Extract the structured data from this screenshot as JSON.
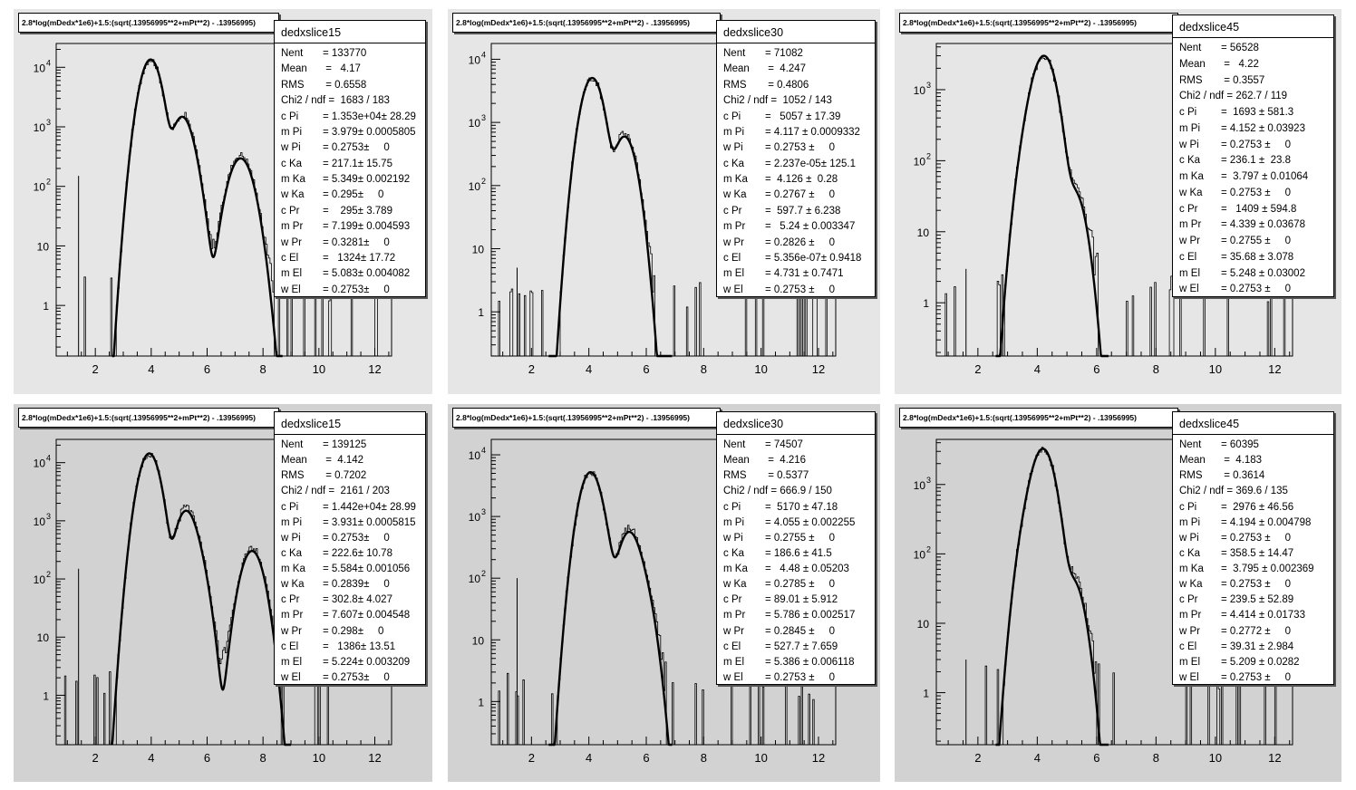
{
  "chart_data": [
    {
      "type": "histogram",
      "title": "2.8*log(mDedx*1e6)+1.5:(sqrt(.13956995**2+mPt**2) - .13956995)",
      "xlim": [
        0.6,
        12.6
      ],
      "ylim_log10": [
        -0.85,
        4.4
      ],
      "xticks": [
        2,
        4,
        6,
        8,
        10,
        12
      ],
      "yticks": [
        {
          "value": 1,
          "label": "1",
          "sup": ""
        },
        {
          "value": 10,
          "label": "10",
          "sup": ""
        },
        {
          "value": 100,
          "label": "10",
          "sup": "2"
        },
        {
          "value": 1000,
          "label": "10",
          "sup": "3"
        },
        {
          "value": 10000,
          "label": "10",
          "sup": "4"
        }
      ],
      "stats": {
        "name": "dedxslice15",
        "rows": [
          {
            "label": "Nent",
            "value": "= 133770"
          },
          {
            "label": "Mean",
            "value": " =   4.17"
          },
          {
            "label": "RMS",
            "value": " = 0.6558"
          },
          {
            "label": "Chi2 / ndf",
            "value": " =  1683 / 183"
          },
          {
            "label": "c Pi",
            "value": "= 1.353e+04± 28.29"
          },
          {
            "label": "m Pi",
            "value": "= 3.979± 0.0005805"
          },
          {
            "label": "w Pi",
            "value": "= 0.2753±     0"
          },
          {
            "label": "c Ka",
            "value": "= 217.1± 15.75"
          },
          {
            "label": "m Ka",
            "value": "= 5.349± 0.002192"
          },
          {
            "label": "w Ka",
            "value": "= 0.295±     0"
          },
          {
            "label": "c Pr",
            "value": "=    295± 3.789"
          },
          {
            "label": "m Pr",
            "value": "= 7.199± 0.004593"
          },
          {
            "label": "w Pr",
            "value": "= 0.3281±     0"
          },
          {
            "label": "c El",
            "value": "=   1324± 17.72"
          },
          {
            "label": "m El",
            "value": "= 5.083± 0.004082"
          },
          {
            "label": "w El",
            "value": "= 0.2753±     0"
          }
        ]
      },
      "fit": {
        "components": [
          {
            "name": "Pi",
            "c": 13530,
            "m": 3.979,
            "w": 0.2753
          },
          {
            "name": "Ka",
            "c": 217.1,
            "m": 5.349,
            "w": 0.295
          },
          {
            "name": "Pr",
            "c": 295,
            "m": 7.199,
            "w": 0.3281
          },
          {
            "name": "El",
            "c": 1324,
            "m": 5.083,
            "w": 0.2753
          }
        ],
        "range": [
          2.6,
          8.7
        ]
      },
      "spikes": [
        {
          "x": 1.4,
          "y": 150
        }
      ]
    },
    {
      "type": "histogram",
      "title": "2.8*log(mDedx*1e6)+1.5:(sqrt(.13956995**2+mPt**2) - .13956995)",
      "xlim": [
        0.6,
        12.6
      ],
      "ylim_log10": [
        -0.7,
        4.25
      ],
      "xticks": [
        2,
        4,
        6,
        8,
        10,
        12
      ],
      "yticks": [
        {
          "value": 1,
          "label": "1",
          "sup": ""
        },
        {
          "value": 10,
          "label": "10",
          "sup": ""
        },
        {
          "value": 100,
          "label": "10",
          "sup": "2"
        },
        {
          "value": 1000,
          "label": "10",
          "sup": "3"
        },
        {
          "value": 10000,
          "label": "10",
          "sup": "4"
        }
      ],
      "stats": {
        "name": "dedxslice30",
        "rows": [
          {
            "label": "Nent",
            "value": "= 71082"
          },
          {
            "label": "Mean",
            "value": " =  4.247"
          },
          {
            "label": "RMS",
            "value": " = 0.4806"
          },
          {
            "label": "Chi2 / ndf",
            "value": " =  1052 / 143"
          },
          {
            "label": "c Pi",
            "value": "=   5057 ± 17.39"
          },
          {
            "label": "m Pi",
            "value": "= 4.117 ± 0.0009332"
          },
          {
            "label": "w Pi",
            "value": "= 0.2753 ±     0"
          },
          {
            "label": "c Ka",
            "value": "= 2.237e-05± 125.1"
          },
          {
            "label": "m Ka",
            "value": "=  4.126 ±  0.28"
          },
          {
            "label": "w Ka",
            "value": "= 0.2767 ±     0"
          },
          {
            "label": "c Pr",
            "value": "=  597.7 ± 6.238"
          },
          {
            "label": "m Pr",
            "value": "=   5.24 ± 0.003347"
          },
          {
            "label": "w Pr",
            "value": "= 0.2826 ±     0"
          },
          {
            "label": "c El",
            "value": "= 5.356e-07± 0.9418"
          },
          {
            "label": "m El",
            "value": "= 4.731 ± 0.7471"
          },
          {
            "label": "w El",
            "value": "= 0.2753 ±     0"
          }
        ]
      },
      "fit": {
        "components": [
          {
            "name": "Pi",
            "c": 5057,
            "m": 4.117,
            "w": 0.2753
          },
          {
            "name": "Pr",
            "c": 597.7,
            "m": 5.24,
            "w": 0.2826
          }
        ],
        "range": [
          2.6,
          6.9
        ]
      },
      "spikes": [
        {
          "x": 1.5,
          "y": 5
        }
      ]
    },
    {
      "type": "histogram",
      "title": "2.8*log(mDedx*1e6)+1.5:(sqrt(.13956995**2+mPt**2) - .13956995)",
      "xlim": [
        0.6,
        12.6
      ],
      "ylim_log10": [
        -0.75,
        3.65
      ],
      "xticks": [
        2,
        4,
        6,
        8,
        10,
        12
      ],
      "yticks": [
        {
          "value": 1,
          "label": "1",
          "sup": ""
        },
        {
          "value": 10,
          "label": "10",
          "sup": ""
        },
        {
          "value": 100,
          "label": "10",
          "sup": "2"
        },
        {
          "value": 1000,
          "label": "10",
          "sup": "3"
        }
      ],
      "stats": {
        "name": "dedxslice45",
        "rows": [
          {
            "label": "Nent",
            "value": "= 56528"
          },
          {
            "label": "Mean",
            "value": " =   4.22"
          },
          {
            "label": "RMS",
            "value": " = 0.3557"
          },
          {
            "label": "Chi2 / ndf",
            "value": " = 262.7 / 119"
          },
          {
            "label": "c Pi",
            "value": "=  1693 ± 581.3"
          },
          {
            "label": "m Pi",
            "value": "= 4.152 ± 0.03923"
          },
          {
            "label": "w Pi",
            "value": "= 0.2753 ±     0"
          },
          {
            "label": "c Ka",
            "value": "= 236.1 ±  23.8"
          },
          {
            "label": "m Ka",
            "value": "=  3.797 ± 0.01064"
          },
          {
            "label": "w Ka",
            "value": "= 0.2753 ±     0"
          },
          {
            "label": "c Pr",
            "value": "=   1409 ± 594.8"
          },
          {
            "label": "m Pr",
            "value": "= 4.339 ± 0.03678"
          },
          {
            "label": "w Pr",
            "value": "= 0.2755 ±     0"
          },
          {
            "label": "c El",
            "value": "= 35.68 ± 3.078"
          },
          {
            "label": "m El",
            "value": "= 5.248 ± 0.03002"
          },
          {
            "label": "w El",
            "value": "= 0.2753 ±     0"
          }
        ]
      },
      "fit": {
        "components": [
          {
            "name": "Pi",
            "c": 1693,
            "m": 4.152,
            "w": 0.2753
          },
          {
            "name": "Ka",
            "c": 236.1,
            "m": 3.797,
            "w": 0.2753
          },
          {
            "name": "Pr",
            "c": 1409,
            "m": 4.339,
            "w": 0.2755
          },
          {
            "name": "El",
            "c": 35.68,
            "m": 5.248,
            "w": 0.2753
          }
        ],
        "range": [
          2.6,
          6.4
        ]
      },
      "spikes": [
        {
          "x": 1.6,
          "y": 3
        }
      ]
    },
    {
      "type": "histogram",
      "title": "2.8*log(mDedx*1e6)+1.5:(sqrt(.13956995**2+mPt**2) - .13956995)",
      "xlim": [
        0.6,
        12.6
      ],
      "ylim_log10": [
        -0.85,
        4.4
      ],
      "xticks": [
        2,
        4,
        6,
        8,
        10,
        12
      ],
      "yticks": [
        {
          "value": 1,
          "label": "1",
          "sup": ""
        },
        {
          "value": 10,
          "label": "10",
          "sup": ""
        },
        {
          "value": 100,
          "label": "10",
          "sup": "2"
        },
        {
          "value": 1000,
          "label": "10",
          "sup": "3"
        },
        {
          "value": 10000,
          "label": "10",
          "sup": "4"
        }
      ],
      "stats": {
        "name": "dedxslice15",
        "rows": [
          {
            "label": "Nent",
            "value": "= 139125"
          },
          {
            "label": "Mean",
            "value": " =  4.142"
          },
          {
            "label": "RMS",
            "value": " = 0.7202"
          },
          {
            "label": "Chi2 / ndf",
            "value": " =  2161 / 203"
          },
          {
            "label": "c Pi",
            "value": "= 1.442e+04± 28.99"
          },
          {
            "label": "m Pi",
            "value": "= 3.931± 0.0005815"
          },
          {
            "label": "w Pi",
            "value": "= 0.2753±     0"
          },
          {
            "label": "c Ka",
            "value": "= 222.6± 10.78"
          },
          {
            "label": "m Ka",
            "value": "= 5.584± 0.001056"
          },
          {
            "label": "w Ka",
            "value": "= 0.2839±     0"
          },
          {
            "label": "c Pr",
            "value": "= 302.8± 4.027"
          },
          {
            "label": "m Pr",
            "value": "= 7.607± 0.004548"
          },
          {
            "label": "w Pr",
            "value": "= 0.298±     0"
          },
          {
            "label": "c El",
            "value": "=   1386± 13.51"
          },
          {
            "label": "m El",
            "value": "= 5.224± 0.003209"
          },
          {
            "label": "w El",
            "value": "= 0.2753±     0"
          }
        ]
      },
      "fit": {
        "components": [
          {
            "name": "Pi",
            "c": 14420,
            "m": 3.931,
            "w": 0.2753
          },
          {
            "name": "Ka",
            "c": 222.6,
            "m": 5.584,
            "w": 0.2839
          },
          {
            "name": "Pr",
            "c": 302.8,
            "m": 7.607,
            "w": 0.298
          },
          {
            "name": "El",
            "c": 1386,
            "m": 5.224,
            "w": 0.2753
          }
        ],
        "range": [
          2.6,
          9.0
        ]
      },
      "spikes": [
        {
          "x": 1.4,
          "y": 150
        }
      ]
    },
    {
      "type": "histogram",
      "title": "2.8*log(mDedx*1e6)+1.5:(sqrt(.13956995**2+mPt**2) - .13956995)",
      "xlim": [
        0.6,
        12.6
      ],
      "ylim_log10": [
        -0.7,
        4.25
      ],
      "xticks": [
        2,
        4,
        6,
        8,
        10,
        12
      ],
      "yticks": [
        {
          "value": 1,
          "label": "1",
          "sup": ""
        },
        {
          "value": 10,
          "label": "10",
          "sup": ""
        },
        {
          "value": 100,
          "label": "10",
          "sup": "2"
        },
        {
          "value": 1000,
          "label": "10",
          "sup": "3"
        },
        {
          "value": 10000,
          "label": "10",
          "sup": "4"
        }
      ],
      "stats": {
        "name": "dedxslice30",
        "rows": [
          {
            "label": "Nent",
            "value": "= 74507"
          },
          {
            "label": "Mean",
            "value": " =  4.216"
          },
          {
            "label": "RMS",
            "value": " = 0.5377"
          },
          {
            "label": "Chi2 / ndf",
            "value": " = 666.9 / 150"
          },
          {
            "label": "c Pi",
            "value": "=  5170 ± 47.18"
          },
          {
            "label": "m Pi",
            "value": "= 4.055 ± 0.002255"
          },
          {
            "label": "w Pi",
            "value": "= 0.2755 ±     0"
          },
          {
            "label": "c Ka",
            "value": "= 186.6 ± 41.5"
          },
          {
            "label": "m Ka",
            "value": "=   4.48 ± 0.05203"
          },
          {
            "label": "w Ka",
            "value": "= 0.2785 ±     0"
          },
          {
            "label": "c Pr",
            "value": "= 89.01 ± 5.912"
          },
          {
            "label": "m Pr",
            "value": "= 5.786 ± 0.002517"
          },
          {
            "label": "w Pr",
            "value": "= 0.2845 ±     0"
          },
          {
            "label": "c El",
            "value": "= 527.7 ± 7.659"
          },
          {
            "label": "m El",
            "value": "= 5.386 ± 0.006118"
          },
          {
            "label": "w El",
            "value": "= 0.2753 ±     0"
          }
        ]
      },
      "fit": {
        "components": [
          {
            "name": "Pi",
            "c": 5170,
            "m": 4.055,
            "w": 0.2755
          },
          {
            "name": "Ka",
            "c": 186.6,
            "m": 4.48,
            "w": 0.2785
          },
          {
            "name": "Pr",
            "c": 89.01,
            "m": 5.786,
            "w": 0.2845
          },
          {
            "name": "El",
            "c": 527.7,
            "m": 5.386,
            "w": 0.2753
          }
        ],
        "range": [
          2.6,
          6.9
        ]
      },
      "spikes": [
        {
          "x": 1.5,
          "y": 100
        }
      ]
    },
    {
      "type": "histogram",
      "title": "2.8*log(mDedx*1e6)+1.5:(sqrt(.13956995**2+mPt**2) - .13956995)",
      "xlim": [
        0.6,
        12.6
      ],
      "ylim_log10": [
        -0.75,
        3.65
      ],
      "xticks": [
        2,
        4,
        6,
        8,
        10,
        12
      ],
      "yticks": [
        {
          "value": 1,
          "label": "1",
          "sup": ""
        },
        {
          "value": 10,
          "label": "10",
          "sup": ""
        },
        {
          "value": 100,
          "label": "10",
          "sup": "2"
        },
        {
          "value": 1000,
          "label": "10",
          "sup": "3"
        }
      ],
      "stats": {
        "name": "dedxslice45",
        "rows": [
          {
            "label": "Nent",
            "value": "= 60395"
          },
          {
            "label": "Mean",
            "value": " =  4.183"
          },
          {
            "label": "RMS",
            "value": " = 0.3614"
          },
          {
            "label": "Chi2 / ndf",
            "value": " = 369.6 / 135"
          },
          {
            "label": "c Pi",
            "value": "=  2976 ± 46.56"
          },
          {
            "label": "m Pi",
            "value": "= 4.194 ± 0.004798"
          },
          {
            "label": "w Pi",
            "value": "= 0.2753 ±     0"
          },
          {
            "label": "c Ka",
            "value": "= 358.5 ± 14.47"
          },
          {
            "label": "m Ka",
            "value": "=  3.795 ± 0.002369"
          },
          {
            "label": "w Ka",
            "value": "= 0.2753 ±     0"
          },
          {
            "label": "c Pr",
            "value": "= 239.5 ± 52.89"
          },
          {
            "label": "m Pr",
            "value": "= 4.414 ± 0.01733"
          },
          {
            "label": "w Pr",
            "value": "= 0.2772 ±     0"
          },
          {
            "label": "c El",
            "value": "= 39.31 ± 2.984"
          },
          {
            "label": "m El",
            "value": "= 5.209 ± 0.0282"
          },
          {
            "label": "w El",
            "value": "= 0.2753 ±     0"
          }
        ]
      },
      "fit": {
        "components": [
          {
            "name": "Pi",
            "c": 2976,
            "m": 4.194,
            "w": 0.2753
          },
          {
            "name": "Ka",
            "c": 358.5,
            "m": 3.795,
            "w": 0.2753
          },
          {
            "name": "Pr",
            "c": 239.5,
            "m": 4.414,
            "w": 0.2772
          },
          {
            "name": "El",
            "c": 39.31,
            "m": 5.209,
            "w": 0.2753
          }
        ],
        "range": [
          2.6,
          6.4
        ]
      },
      "spikes": [
        {
          "x": 1.6,
          "y": 3
        }
      ]
    }
  ]
}
